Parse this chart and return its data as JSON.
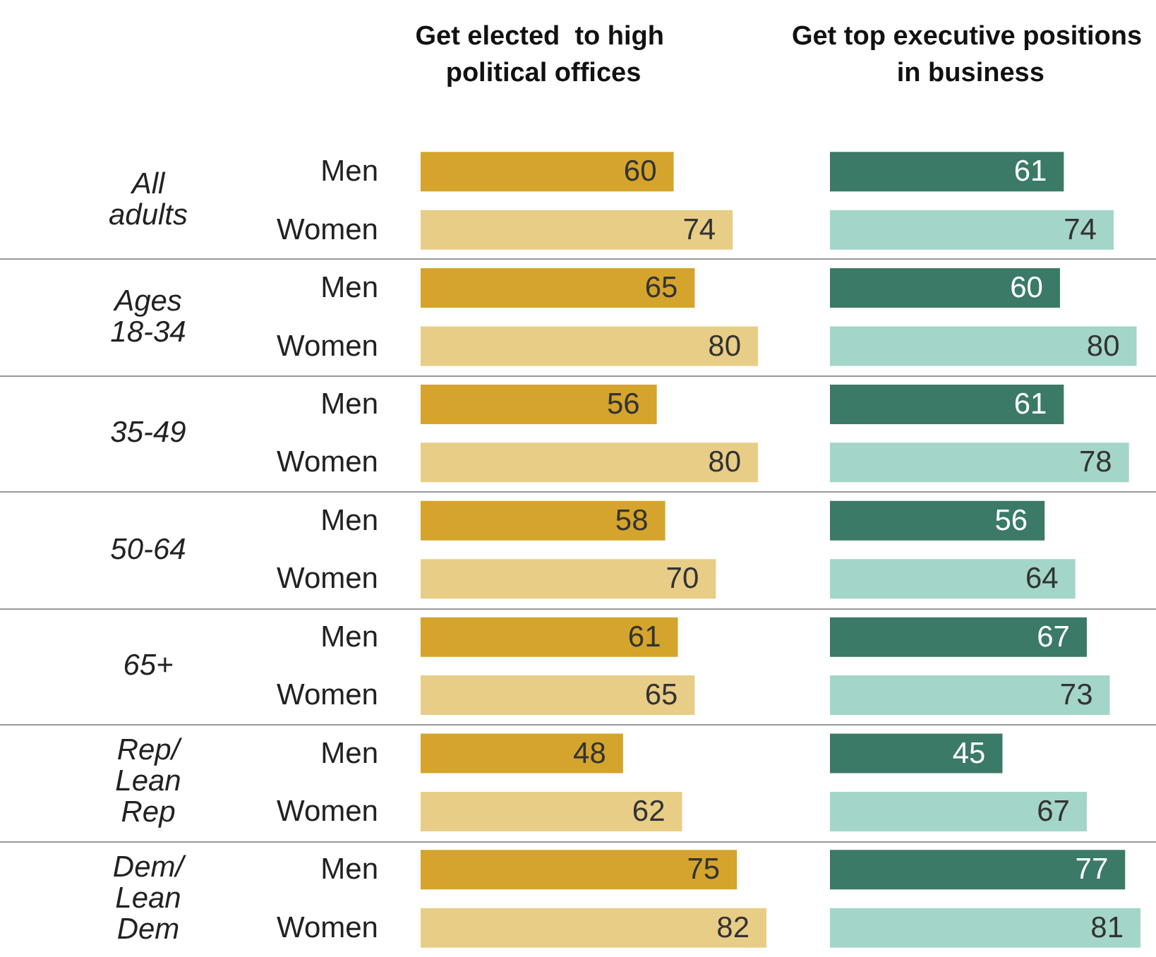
{
  "chart_data": [
    {
      "type": "bar",
      "orientation": "horizontal",
      "title": "Get elected  to high political offices",
      "categories": [
        "Men",
        "Women",
        "Men",
        "Women",
        "Men",
        "Women",
        "Men",
        "Women",
        "Men",
        "Women",
        "Men",
        "Women",
        "Men",
        "Women"
      ],
      "annotations": [
        "All adults",
        "Ages 18-34",
        "35-49",
        "50-64",
        "65+",
        "Rep/ Lean Rep",
        "Dem/ Lean Dem"
      ],
      "values": [
        60,
        74,
        65,
        80,
        56,
        80,
        58,
        70,
        61,
        65,
        48,
        62,
        75,
        82
      ],
      "colors": [
        "#d4a42c",
        "#e8cd87",
        "#d4a42c",
        "#e8cd87",
        "#d4a42c",
        "#e8cd87",
        "#d4a42c",
        "#e8cd87",
        "#d4a42c",
        "#e8cd87",
        "#d4a42c",
        "#e8cd87",
        "#d4a42c",
        "#e8cd87"
      ],
      "data_labels": true,
      "tick_labels": "y"
    },
    {
      "type": "bar",
      "orientation": "horizontal",
      "title": "Get top executive positions in business",
      "categories": [
        "Men",
        "Women",
        "Men",
        "Women",
        "Men",
        "Women",
        "Men",
        "Women",
        "Men",
        "Women",
        "Men",
        "Women",
        "Men",
        "Women"
      ],
      "values": [
        61,
        74,
        60,
        80,
        61,
        78,
        56,
        64,
        67,
        73,
        45,
        67,
        77,
        81
      ],
      "colors": [
        "#3a7a66",
        "#a3d5c8",
        "#3a7a66",
        "#a3d5c8",
        "#3a7a66",
        "#a3d5c8",
        "#3a7a66",
        "#a3d5c8",
        "#3a7a66",
        "#a3d5c8",
        "#3a7a66",
        "#a3d5c8",
        "#3a7a66",
        "#a3d5c8"
      ],
      "data_labels": true,
      "tick_labels": false
    }
  ]
}
